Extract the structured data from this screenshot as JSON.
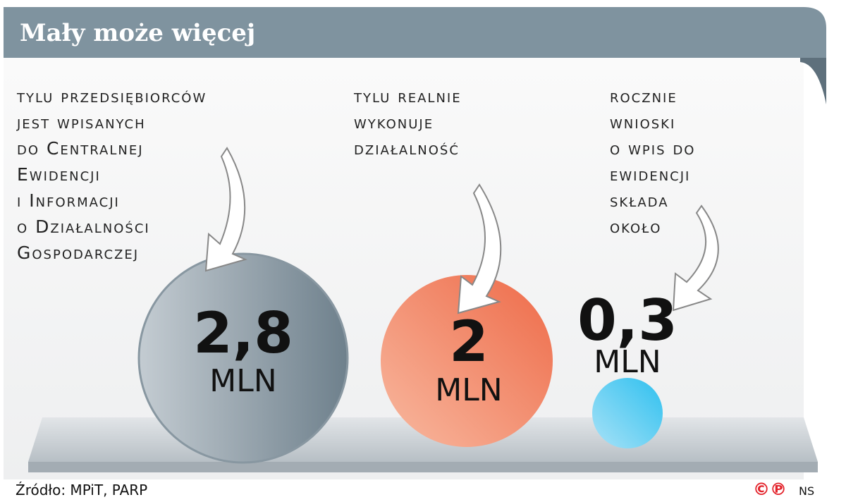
{
  "header": {
    "title": "Mały może więcej"
  },
  "items": [
    {
      "description": [
        "tylu przedsiębiorców",
        "jest wpisanych",
        "do Centralnej",
        "Ewidencji",
        "i Informacji",
        "o Działalności",
        "Gospodarczej"
      ],
      "value": "2,8",
      "unit": "MLN"
    },
    {
      "description": [
        "tylu realnie",
        "wykonuje",
        "działalność"
      ],
      "value": "2",
      "unit": "MLN"
    },
    {
      "description": [
        "rocznie",
        "wnioski",
        "o wpis do",
        "ewidencji",
        "składa",
        "około"
      ],
      "value": "0,3",
      "unit": "MLN"
    }
  ],
  "footer": {
    "source": "Źródło: MPiT, PARP",
    "marks": "©℗",
    "author": "NS"
  }
}
